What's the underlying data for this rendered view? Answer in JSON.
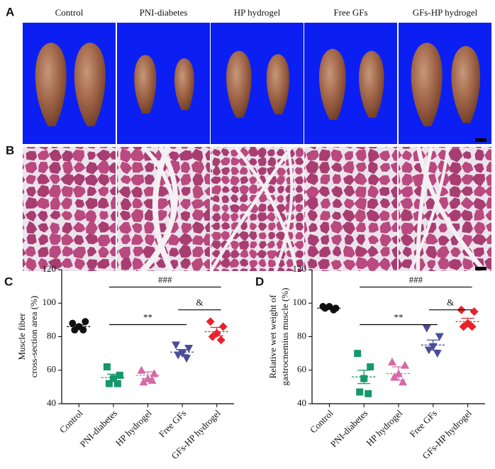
{
  "figure": {
    "panel_labels": [
      "A",
      "B",
      "C",
      "D"
    ],
    "groups": [
      "Control",
      "PNI-diabetes",
      "HP hydrogel",
      "Free GFs",
      "GFs-HP hydrogel"
    ]
  },
  "chart_data": [
    {
      "type": "scatter",
      "ylabel": [
        "Muscle fiber",
        "cross-section area (%)"
      ],
      "categories": [
        "Control",
        "PNI-diabetes",
        "HP hydrogel",
        "Free GFs",
        "GFs-HP hydrogel"
      ],
      "ylim": [
        40,
        120
      ],
      "yticks": [
        40,
        60,
        80,
        100,
        120
      ],
      "groups": [
        {
          "name": "Control",
          "color": "#111111",
          "marker": "circle",
          "values": [
            88,
            89,
            86,
            84,
            84
          ],
          "mean": 86,
          "error": 1
        },
        {
          "name": "PNI-diabetes",
          "color": "#17986a",
          "marker": "square",
          "values": [
            62,
            57,
            55,
            52,
            52
          ],
          "mean": 55.6,
          "error": 2
        },
        {
          "name": "HP hydrogel",
          "color": "#d46aa6",
          "marker": "triangle-up",
          "values": [
            60,
            58,
            55,
            53,
            54
          ],
          "mean": 57,
          "error": 2
        },
        {
          "name": "Free GFs",
          "color": "#4a4e98",
          "marker": "triangle-down",
          "values": [
            75,
            73,
            70,
            69,
            67
          ],
          "mean": 70.8,
          "error": 1.5
        },
        {
          "name": "GFs-HP hydrogel",
          "color": "#e8232a",
          "marker": "diamond",
          "values": [
            89,
            86,
            82,
            80,
            78
          ],
          "mean": 83,
          "error": 2.5
        }
      ],
      "annotations": [
        {
          "label": "###",
          "from": "PNI-diabetes",
          "to": "GFs-HP hydrogel"
        },
        {
          "label": "**",
          "from": "PNI-diabetes",
          "to": "Free GFs"
        },
        {
          "label": "&",
          "from": "Free GFs",
          "to": "GFs-HP hydrogel"
        }
      ]
    },
    {
      "type": "scatter",
      "ylabel": [
        "Relative wet weight of",
        "gastrocnemius muscle (%)"
      ],
      "categories": [
        "Control",
        "PNI-diabetes",
        "HP hydrogel",
        "Free GFs",
        "GFs-HP hydrogel"
      ],
      "ylim": [
        40,
        120
      ],
      "yticks": [
        40,
        60,
        80,
        100,
        120
      ],
      "groups": [
        {
          "name": "Control",
          "color": "#111111",
          "marker": "circle",
          "values": [
            98,
            97,
            98,
            97,
            96
          ],
          "mean": 97,
          "error": 0.5
        },
        {
          "name": "PNI-diabetes",
          "color": "#17986a",
          "marker": "square",
          "values": [
            70,
            62,
            55,
            47,
            46
          ],
          "mean": 56,
          "error": 4
        },
        {
          "name": "HP hydrogel",
          "color": "#d46aa6",
          "marker": "triangle-up",
          "values": [
            65,
            63,
            58,
            56,
            53
          ],
          "mean": 58,
          "error": 4
        },
        {
          "name": "Free GFs",
          "color": "#4a4e98",
          "marker": "triangle-down",
          "values": [
            85,
            80,
            74,
            72,
            70
          ],
          "mean": 75,
          "error": 3
        },
        {
          "name": "GFs-HP hydrogel",
          "color": "#e8232a",
          "marker": "diamond",
          "values": [
            96,
            95,
            88,
            86,
            86
          ],
          "mean": 89,
          "error": 2
        }
      ],
      "annotations": [
        {
          "label": "###",
          "from": "PNI-diabetes",
          "to": "GFs-HP hydrogel"
        },
        {
          "label": "**",
          "from": "PNI-diabetes",
          "to": "Free GFs"
        },
        {
          "label": "&",
          "from": "Free GFs",
          "to": "GFs-HP hydrogel"
        }
      ]
    }
  ]
}
